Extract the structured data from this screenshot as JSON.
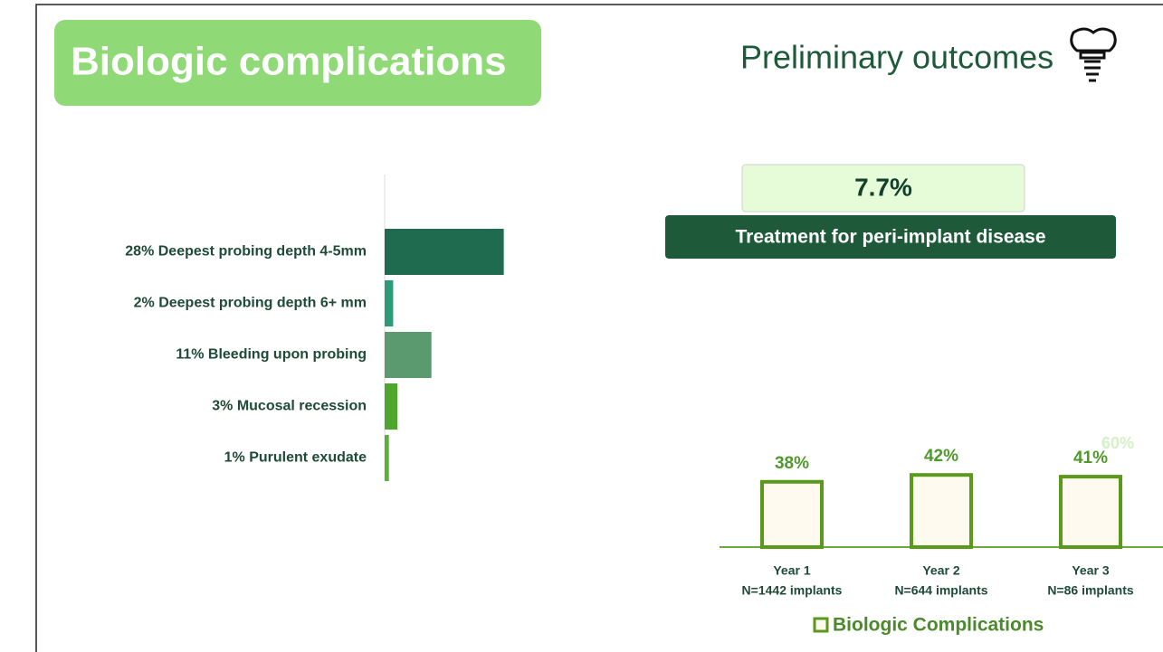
{
  "header": {
    "title": "Biologic complications",
    "subtitle": "Preliminary outcomes"
  },
  "callout": {
    "value_label": "7.7%",
    "label": "Treatment for peri-implant disease"
  },
  "chart_data": [
    {
      "type": "barh",
      "categories": [
        "Deepest probing depth 4-5mm",
        "Deepest probing depth 6+ mm",
        "Bleeding upon probing",
        "Mucosal recession",
        "Purulent exudate"
      ],
      "values": [
        28,
        2,
        11,
        3,
        1
      ],
      "value_labels": [
        "28%",
        "2%",
        "11%",
        "3%",
        "1%"
      ],
      "colors": [
        "#1e6b50",
        "#2a9a78",
        "#5a9a6e",
        "#4ea62e",
        "#5bb03a"
      ]
    },
    {
      "type": "bar",
      "categories": [
        "Year 1",
        "Year 2",
        "Year 3"
      ],
      "category_sublabels": [
        "N=1442 implants",
        "N=644 implants",
        "N=86 implants"
      ],
      "series": [
        {
          "name": "Biologic Complications",
          "color": "#5a9a1a",
          "values": [
            38,
            42,
            41
          ],
          "value_labels": [
            "38%",
            "42%",
            "41%"
          ]
        }
      ],
      "ylim": [
        0,
        60
      ],
      "yticks": [
        {
          "value": 60,
          "label": "60%"
        }
      ]
    }
  ]
}
